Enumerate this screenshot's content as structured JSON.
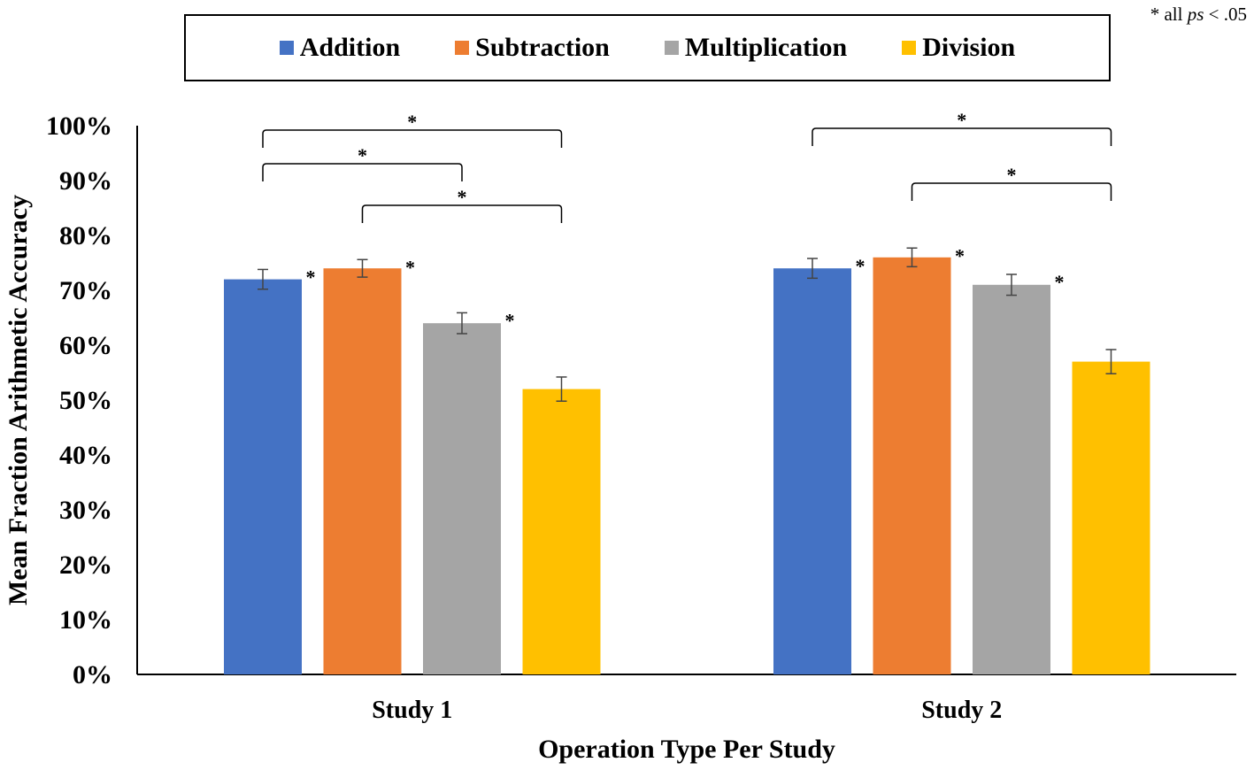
{
  "chart_data": {
    "type": "bar",
    "title": "",
    "xlabel": "Operation Type Per Study",
    "ylabel": "Mean Fraction Arithmetic Accuracy",
    "ylim": [
      0,
      100
    ],
    "yticks": [
      "0%",
      "10%",
      "20%",
      "30%",
      "40%",
      "50%",
      "60%",
      "70%",
      "80%",
      "90%",
      "100%"
    ],
    "categories": [
      "Study 1",
      "Study 2"
    ],
    "series": [
      {
        "name": "Addition",
        "color": "#4472C4",
        "values": [
          72,
          74
        ],
        "errors": [
          1.8,
          1.8
        ]
      },
      {
        "name": "Subtraction",
        "color": "#ED7D31",
        "values": [
          74,
          76
        ],
        "errors": [
          1.6,
          1.7
        ]
      },
      {
        "name": "Multiplication",
        "color": "#A5A5A5",
        "values": [
          64,
          71
        ],
        "errors": [
          1.9,
          1.9
        ]
      },
      {
        "name": "Division",
        "color": "#FFC000",
        "values": [
          52,
          57
        ],
        "errors": [
          2.2,
          2.2
        ]
      }
    ],
    "bar_stars": [
      [
        "*",
        "*",
        "*",
        ""
      ],
      [
        "*",
        "*",
        "*",
        ""
      ]
    ],
    "brackets": [
      {
        "category": 0,
        "from": "Addition",
        "to": "Division",
        "label": "*"
      },
      {
        "category": 0,
        "from": "Addition",
        "to": "Multiplication",
        "label": "*"
      },
      {
        "category": 0,
        "from": "Subtraction",
        "to": "Division",
        "label": "*"
      },
      {
        "category": 1,
        "from": "Addition",
        "to": "Division",
        "label": "*"
      },
      {
        "category": 1,
        "from": "Subtraction",
        "to": "Division",
        "label": "*"
      }
    ],
    "legend_position": "top",
    "grid": false
  },
  "note": {
    "prefix": "* all ",
    "italic": "ps",
    "suffix": " < .05"
  }
}
